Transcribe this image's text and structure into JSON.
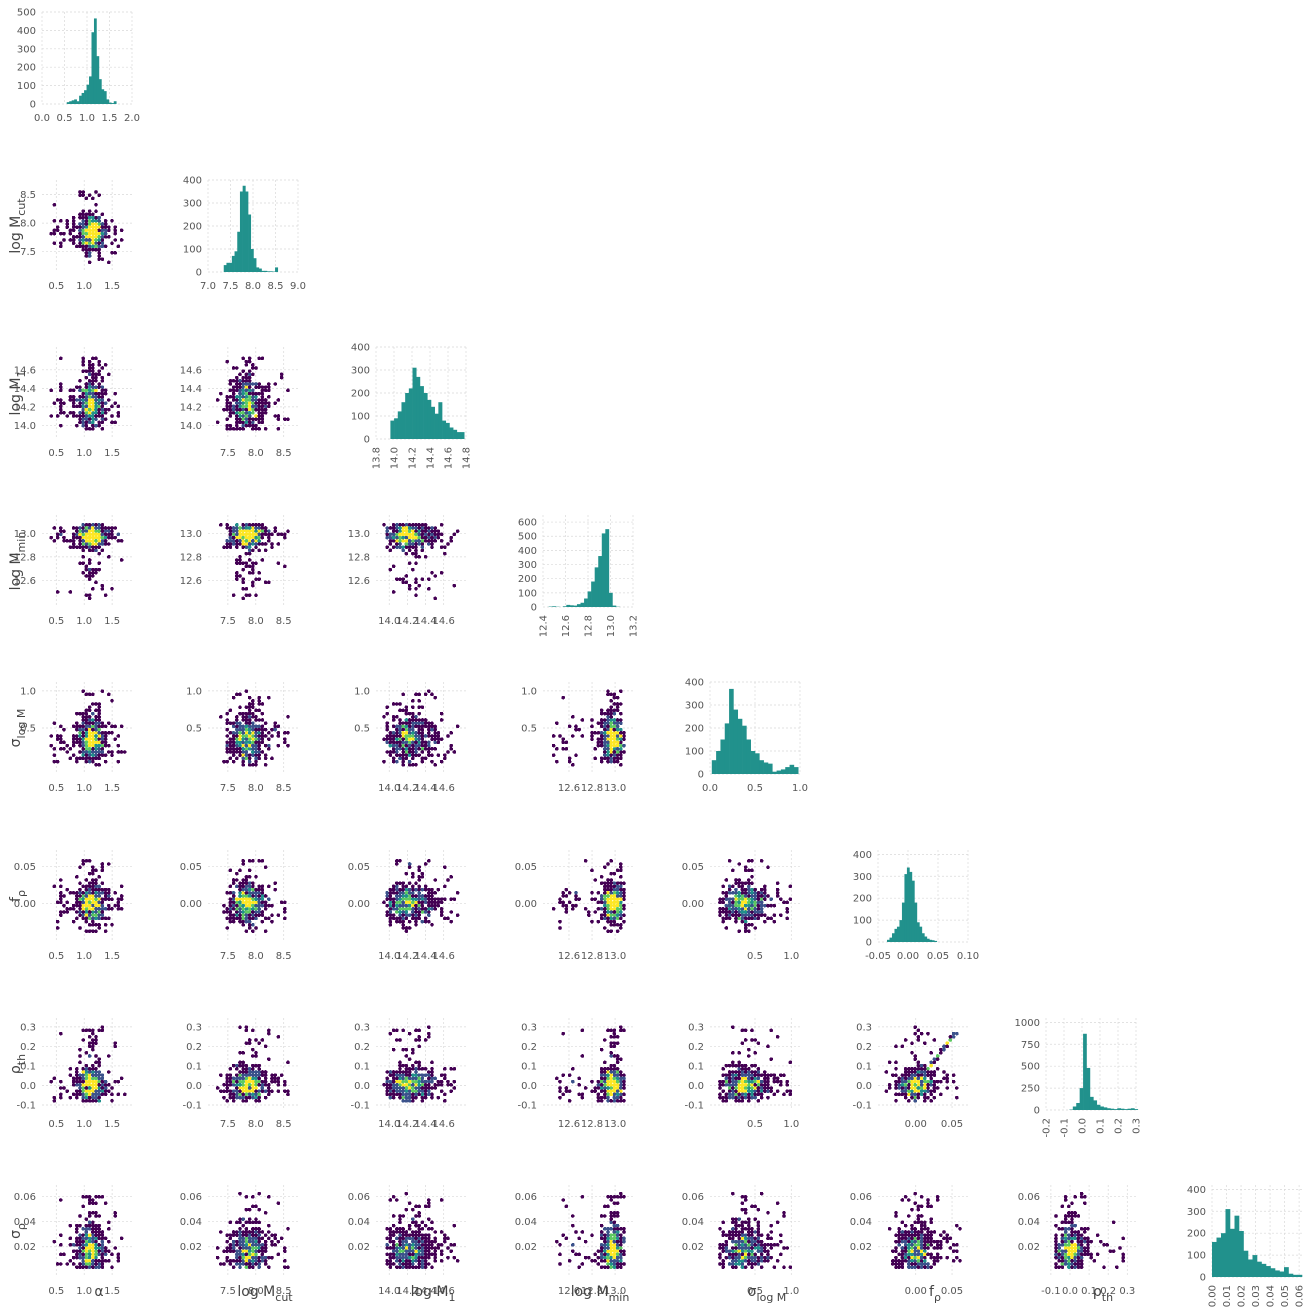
{
  "chart_data": {
    "type": "corner",
    "params": [
      {
        "key": "alpha",
        "label": "α",
        "base": "α",
        "sub": "",
        "ticks": [
          0.0,
          0.5,
          1.0,
          1.5,
          2.0
        ],
        "tick_labels": [
          "0.0",
          "0.5",
          "1.0",
          "1.5",
          "2.0"
        ],
        "range": [
          0.4,
          1.7
        ],
        "center": 1.12,
        "spread": 0.12
      },
      {
        "key": "logMcut",
        "label": "log M_cut",
        "base": "log M",
        "sub": "cut",
        "ticks": [
          7.0,
          7.5,
          8.0,
          8.5,
          9.0
        ],
        "tick_labels": [
          "7.0",
          "7.5",
          "8.0",
          "8.5",
          "9.0"
        ],
        "range": [
          7.3,
          8.6
        ],
        "center": 7.85,
        "spread": 0.15
      },
      {
        "key": "logM1",
        "label": "log M_1",
        "base": "log M",
        "sub": "1",
        "ticks": [
          13.8,
          14.0,
          14.2,
          14.4,
          14.6,
          14.8
        ],
        "tick_labels": [
          "13.8",
          "14.0",
          "14.2",
          "14.4",
          "14.6",
          "14.8"
        ],
        "range": [
          13.95,
          14.75
        ],
        "center": 14.22,
        "spread": 0.14
      },
      {
        "key": "logMmin",
        "label": "log M_min",
        "base": "log M",
        "sub": "min",
        "ticks": [
          12.4,
          12.6,
          12.8,
          13.0,
          13.2
        ],
        "tick_labels": [
          "12.4",
          "12.6",
          "12.8",
          "13.0",
          "13.2"
        ],
        "range": [
          12.45,
          13.08
        ],
        "center": 12.98,
        "spread": 0.05
      },
      {
        "key": "sigmalogM",
        "label": "σ_log M",
        "base": "σ",
        "sub": "log M",
        "ticks": [
          0.0,
          0.5,
          1.0
        ],
        "tick_labels": [
          "0.0",
          "0.5",
          "1.0"
        ],
        "range": [
          0.0,
          1.0
        ],
        "center": 0.35,
        "spread": 0.15
      },
      {
        "key": "frho",
        "label": "f_ρ",
        "base": "f",
        "sub": "ρ",
        "ticks": [
          -0.05,
          0.0,
          0.05,
          0.1
        ],
        "tick_labels": [
          "-0.05",
          "0.00",
          "0.05",
          "0.10"
        ],
        "range": [
          -0.04,
          0.06
        ],
        "center": 0.0,
        "spread": 0.012
      },
      {
        "key": "rhoth",
        "label": "ρ_th",
        "base": "ρ",
        "sub": "th",
        "ticks": [
          -0.2,
          -0.1,
          0.0,
          0.1,
          0.2,
          0.3
        ],
        "tick_labels": [
          "-0.2",
          "-0.1",
          "0.0",
          "0.1",
          "0.2",
          "0.3"
        ],
        "range": [
          -0.08,
          0.3
        ],
        "center": 0.0,
        "spread": 0.04
      },
      {
        "key": "sigmarho",
        "label": "σ_ρ",
        "base": "σ",
        "sub": "ρ",
        "ticks": [
          0.0,
          0.01,
          0.02,
          0.03,
          0.04,
          0.05,
          0.06
        ],
        "tick_labels": [
          "0.00",
          "0.01",
          "0.02",
          "0.03",
          "0.04",
          "0.05",
          "0.06"
        ],
        "range": [
          0.003,
          0.062
        ],
        "center": 0.016,
        "spread": 0.01
      }
    ],
    "off_diag_ticks": {
      "alpha": {
        "x": [
          0.5,
          1.0,
          1.5
        ],
        "x_labels": [
          "0.5",
          "1.0",
          "1.5"
        ]
      },
      "logMcut": {
        "x": [
          7.5,
          8.0,
          8.5
        ],
        "x_labels": [
          "7.5",
          "8.0",
          "8.5"
        ],
        "y": [
          7.5,
          8.0,
          8.5
        ],
        "y_labels": [
          "7.5",
          "8.0",
          "8.5"
        ]
      },
      "logM1": {
        "x": [
          14.0,
          14.2,
          14.4,
          14.6
        ],
        "x_labels": [
          "14.0",
          "14.2",
          "14.4",
          "14.6"
        ],
        "y": [
          14.0,
          14.2,
          14.4,
          14.6
        ],
        "y_labels": [
          "14.0",
          "14.2",
          "14.4",
          "14.6"
        ]
      },
      "logMmin": {
        "x": [
          12.6,
          12.8,
          13.0
        ],
        "x_labels": [
          "12.6",
          "12.8",
          "13.0"
        ],
        "y": [
          12.6,
          12.8,
          13.0
        ],
        "y_labels": [
          "12.6",
          "12.8",
          "13.0"
        ]
      },
      "sigmalogM": {
        "x": [
          0.5,
          1.0
        ],
        "x_labels": [
          "0.5",
          "1.0"
        ],
        "y": [
          0.5,
          1.0
        ],
        "y_labels": [
          "0.5",
          "1.0"
        ]
      },
      "frho": {
        "x": [
          0.0,
          0.05
        ],
        "x_labels": [
          "0.00",
          "0.05"
        ],
        "y": [
          0.0,
          0.05
        ],
        "y_labels": [
          "0.00",
          "0.05"
        ]
      },
      "rhoth": {
        "x": [
          -0.1,
          0.0,
          0.1,
          0.2,
          0.3
        ],
        "x_labels": [
          "-0.1",
          "0.0",
          "0.1",
          "0.2",
          "0.3"
        ],
        "y": [
          -0.1,
          0.0,
          0.1,
          0.2,
          0.3
        ],
        "y_labels": [
          "-0.1",
          "0.0",
          "0.1",
          "0.2",
          "0.3"
        ]
      },
      "sigmarho": {
        "y": [
          0.02,
          0.04,
          0.06
        ],
        "y_labels": [
          "0.02",
          "0.04",
          "0.06"
        ]
      }
    },
    "histograms": [
      {
        "param": "alpha",
        "ylim": [
          0,
          500
        ],
        "yticks": [
          0,
          100,
          200,
          300,
          400,
          500
        ],
        "bin_edges_range": [
          0.55,
          1.65
        ],
        "counts": [
          10,
          15,
          20,
          25,
          15,
          45,
          60,
          75,
          105,
          150,
          390,
          465,
          260,
          135,
          80,
          70,
          25,
          8,
          5,
          15
        ]
      },
      {
        "param": "logMcut",
        "ylim": [
          0,
          400
        ],
        "yticks": [
          0,
          100,
          200,
          300,
          400
        ],
        "bin_edges_range": [
          7.35,
          8.55
        ],
        "counts": [
          30,
          40,
          40,
          70,
          90,
          175,
          350,
          375,
          350,
          250,
          100,
          60,
          20,
          15,
          5,
          5,
          3,
          3,
          2,
          20
        ]
      },
      {
        "param": "logM1",
        "ylim": [
          0,
          400
        ],
        "yticks": [
          0,
          100,
          200,
          300,
          400
        ],
        "bin_edges_range": [
          13.96,
          14.78
        ],
        "counts": [
          80,
          90,
          120,
          160,
          200,
          220,
          310,
          270,
          230,
          200,
          170,
          140,
          110,
          160,
          80,
          70,
          50,
          40,
          30,
          30
        ]
      },
      {
        "param": "logMmin",
        "ylim": [
          0,
          650
        ],
        "yticks": [
          0,
          100,
          200,
          300,
          400,
          500,
          600
        ],
        "bin_edges_range": [
          12.45,
          13.08
        ],
        "counts": [
          3,
          5,
          2,
          0,
          5,
          15,
          12,
          10,
          20,
          30,
          60,
          110,
          180,
          280,
          360,
          520,
          550,
          100,
          10,
          2
        ]
      },
      {
        "param": "sigmalogM",
        "ylim": [
          0,
          400
        ],
        "yticks": [
          0,
          100,
          200,
          300,
          400
        ],
        "bin_edges_range": [
          0.02,
          0.98
        ],
        "counts": [
          60,
          100,
          150,
          220,
          370,
          280,
          240,
          210,
          150,
          100,
          90,
          60,
          50,
          45,
          10,
          15,
          20,
          30,
          40,
          30
        ]
      },
      {
        "param": "frho",
        "ylim": [
          0,
          420
        ],
        "yticks": [
          0,
          100,
          200,
          300,
          400
        ],
        "bin_edges_range": [
          -0.035,
          0.048
        ],
        "counts": [
          10,
          20,
          40,
          60,
          70,
          100,
          180,
          310,
          340,
          320,
          280,
          180,
          90,
          70,
          40,
          25,
          15,
          10,
          8,
          5
        ]
      },
      {
        "param": "rhoth",
        "ylim": [
          0,
          1050
        ],
        "yticks": [
          0,
          250,
          500,
          750,
          1000
        ],
        "bin_edges_range": [
          -0.07,
          0.31
        ],
        "counts": [
          5,
          40,
          80,
          250,
          870,
          480,
          150,
          110,
          60,
          40,
          30,
          20,
          15,
          10,
          20,
          15,
          10,
          15,
          20,
          10
        ]
      },
      {
        "param": "sigmarho",
        "ylim": [
          0,
          420
        ],
        "yticks": [
          0,
          100,
          200,
          300,
          400
        ],
        "bin_edges_range": [
          0.0,
          0.062
        ],
        "counts": [
          160,
          180,
          200,
          310,
          220,
          280,
          210,
          120,
          80,
          100,
          70,
          60,
          50,
          40,
          30,
          25,
          45,
          15,
          10,
          10
        ]
      }
    ],
    "hexbin_colors": [
      "#440154",
      "#3b528b",
      "#21918c",
      "#5ec962",
      "#fde725"
    ],
    "hist_color": "#21918c",
    "grid": true
  }
}
